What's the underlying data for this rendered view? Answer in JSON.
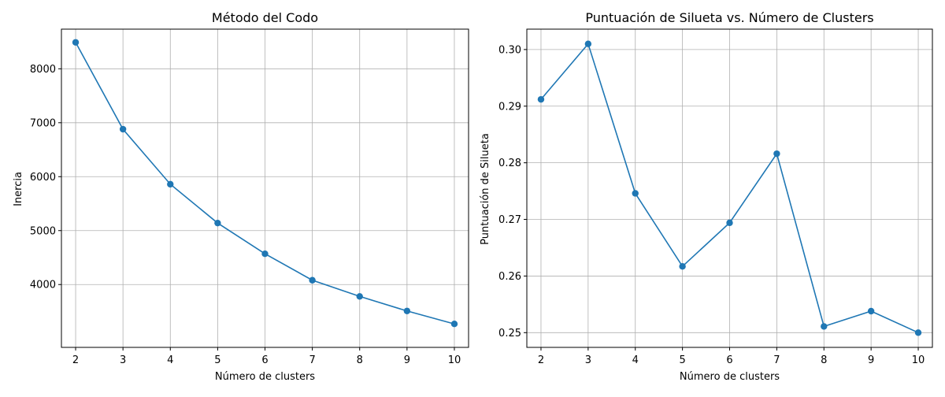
{
  "chart_data": [
    {
      "type": "line",
      "title": "Método del Codo",
      "xlabel": "Número de clusters",
      "ylabel": "Inercia",
      "x": [
        2,
        3,
        4,
        5,
        6,
        7,
        8,
        9,
        10
      ],
      "series": [
        {
          "values": [
            8490,
            6880,
            5860,
            5140,
            4570,
            4080,
            3780,
            3510,
            3270
          ]
        }
      ],
      "xlim": [
        1.7,
        10.3
      ],
      "ylim": [
        2835,
        8735
      ],
      "xticks": [
        2,
        3,
        4,
        5,
        6,
        7,
        8,
        9,
        10
      ],
      "yticks": [
        4000,
        5000,
        6000,
        7000,
        8000
      ],
      "ytick_labels": [
        "4000",
        "5000",
        "6000",
        "7000",
        "8000"
      ],
      "grid": true,
      "marker": "circle",
      "color": "#1f77b4"
    },
    {
      "type": "line",
      "title": "Puntuación de Silueta vs. Número de Clusters",
      "xlabel": "Número de clusters",
      "ylabel": "Puntuación de Silueta",
      "x": [
        2,
        3,
        4,
        5,
        6,
        7,
        8,
        9,
        10
      ],
      "series": [
        {
          "values": [
            0.2912,
            0.301,
            0.2746,
            0.2617,
            0.2694,
            0.2816,
            0.2511,
            0.2538,
            0.25
          ]
        }
      ],
      "xlim": [
        1.7,
        10.3
      ],
      "ylim": [
        0.2474,
        0.3036
      ],
      "xticks": [
        2,
        3,
        4,
        5,
        6,
        7,
        8,
        9,
        10
      ],
      "yticks": [
        0.25,
        0.26,
        0.27,
        0.28,
        0.29,
        0.3
      ],
      "ytick_labels": [
        "0.25",
        "0.26",
        "0.27",
        "0.28",
        "0.29",
        "0.30"
      ],
      "grid": true,
      "marker": "circle",
      "color": "#1f77b4"
    }
  ]
}
